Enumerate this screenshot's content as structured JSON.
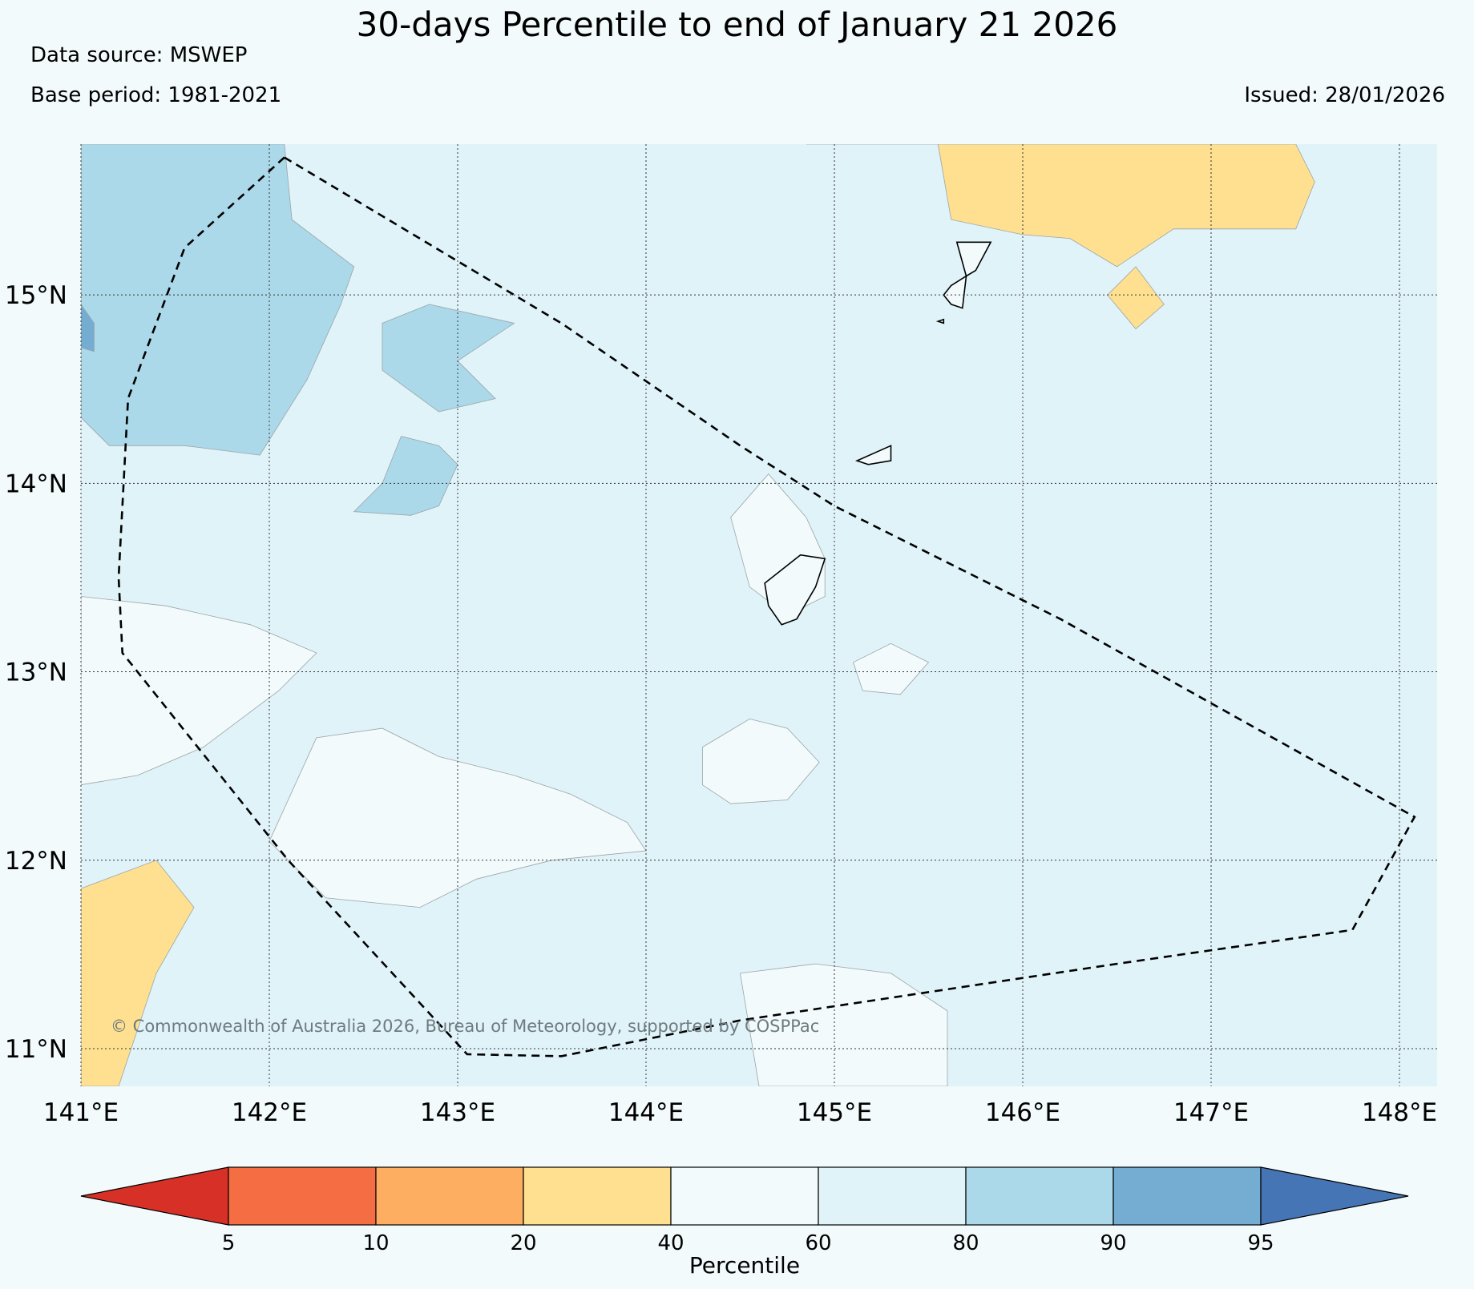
{
  "title": "30-days Percentile to end of January 21 2026",
  "data_source": "Data source: MSWEP",
  "base_period": "Base period: 1981-2021",
  "issued": "Issued: 28/01/2026",
  "copyright": "© Commonwealth of Australia 2026, Bureau of Meteorology, supported by COSPPac",
  "map": {
    "lon_range": [
      141.0,
      148.2
    ],
    "lat_range": [
      10.8,
      15.8
    ],
    "lon_ticks": [
      141,
      142,
      143,
      144,
      145,
      146,
      147,
      148
    ],
    "lon_labels": [
      "141°E",
      "142°E",
      "143°E",
      "144°E",
      "145°E",
      "146°E",
      "147°E",
      "148°E"
    ],
    "lat_ticks": [
      11,
      12,
      13,
      14,
      15
    ],
    "lat_labels": [
      "11°N",
      "12°N",
      "13°N",
      "14°N",
      "15°N"
    ],
    "background_class": "60-80"
  },
  "colorbar": {
    "title": "Percentile",
    "tick_labels": [
      "5",
      "10",
      "20",
      "40",
      "60",
      "80",
      "90",
      "95"
    ],
    "colors": [
      "#d73027",
      "#f46d43",
      "#fdae61",
      "#fee090",
      "#f2fafc",
      "#e0f3f8",
      "#abd9e9",
      "#74add1",
      "#4575b4"
    ]
  },
  "region_outline": [
    [
      142.08,
      15.73
    ],
    [
      141.55,
      15.25
    ],
    [
      141.25,
      14.45
    ],
    [
      141.2,
      13.5
    ],
    [
      141.22,
      13.1
    ],
    [
      142.1,
      12.0
    ],
    [
      143.05,
      10.97
    ],
    [
      143.55,
      10.96
    ],
    [
      144.5,
      11.15
    ],
    [
      146.5,
      11.45
    ],
    [
      147.75,
      11.63
    ],
    [
      148.08,
      12.23
    ],
    [
      146.2,
      13.28
    ],
    [
      145.0,
      13.88
    ],
    [
      144.5,
      14.2
    ],
    [
      143.55,
      14.85
    ],
    [
      142.08,
      15.73
    ]
  ],
  "islands": [
    [
      [
        144.63,
        13.47
      ],
      [
        144.82,
        13.62
      ],
      [
        144.95,
        13.6
      ],
      [
        144.9,
        13.45
      ],
      [
        144.8,
        13.28
      ],
      [
        144.72,
        13.25
      ],
      [
        144.65,
        13.35
      ]
    ],
    [
      [
        145.65,
        15.28
      ],
      [
        145.83,
        15.28
      ],
      [
        145.75,
        15.13
      ],
      [
        145.7,
        15.1
      ]
    ],
    [
      [
        145.62,
        15.05
      ],
      [
        145.7,
        15.1
      ],
      [
        145.68,
        14.93
      ],
      [
        145.62,
        14.95
      ],
      [
        145.58,
        15.0
      ]
    ],
    [
      [
        145.12,
        14.12
      ],
      [
        145.3,
        14.2
      ],
      [
        145.3,
        14.12
      ],
      [
        145.18,
        14.1
      ]
    ],
    [
      [
        145.55,
        14.86
      ],
      [
        145.58,
        14.87
      ],
      [
        145.58,
        14.85
      ]
    ]
  ],
  "contours": [
    {
      "class": "80-90",
      "points": [
        [
          141,
          15.8
        ],
        [
          142.08,
          15.8
        ],
        [
          142.12,
          15.4
        ],
        [
          142.45,
          15.15
        ],
        [
          142.38,
          14.95
        ],
        [
          142.2,
          14.55
        ],
        [
          141.95,
          14.15
        ],
        [
          141.55,
          14.2
        ],
        [
          141.15,
          14.2
        ],
        [
          141,
          14.35
        ]
      ]
    },
    {
      "class": "80-90",
      "points": [
        [
          142.6,
          14.85
        ],
        [
          142.85,
          14.95
        ],
        [
          143.3,
          14.85
        ],
        [
          143.0,
          14.65
        ],
        [
          143.2,
          14.45
        ],
        [
          142.9,
          14.38
        ],
        [
          142.6,
          14.6
        ]
      ]
    },
    {
      "class": "80-90",
      "points": [
        [
          142.45,
          13.85
        ],
        [
          142.6,
          14.0
        ],
        [
          142.7,
          14.25
        ],
        [
          142.9,
          14.2
        ],
        [
          143.0,
          14.1
        ],
        [
          142.9,
          13.88
        ],
        [
          142.75,
          13.83
        ]
      ]
    },
    {
      "class": "90-95",
      "points": [
        [
          141,
          14.95
        ],
        [
          141.07,
          14.85
        ],
        [
          141.07,
          14.7
        ],
        [
          141,
          14.72
        ]
      ]
    },
    {
      "class": "20-40",
      "points": [
        [
          144.85,
          15.8
        ],
        [
          145.55,
          15.8
        ],
        [
          145.62,
          15.4
        ],
        [
          146.0,
          15.32
        ],
        [
          146.25,
          15.3
        ],
        [
          146.5,
          15.15
        ],
        [
          146.8,
          15.35
        ],
        [
          147.45,
          15.35
        ],
        [
          147.55,
          15.6
        ],
        [
          147.45,
          15.8
        ]
      ]
    },
    {
      "class": "20-40",
      "points": [
        [
          146.45,
          15.0
        ],
        [
          146.6,
          15.15
        ],
        [
          146.75,
          14.95
        ],
        [
          146.6,
          14.82
        ]
      ]
    },
    {
      "class": "20-40",
      "points": [
        [
          141,
          11.85
        ],
        [
          141.4,
          12.0
        ],
        [
          141.6,
          11.75
        ],
        [
          141.4,
          11.4
        ],
        [
          141.2,
          10.8
        ],
        [
          141,
          10.8
        ]
      ]
    },
    {
      "class": "40-60",
      "points": [
        [
          141,
          13.4
        ],
        [
          141.45,
          13.35
        ],
        [
          141.9,
          13.25
        ],
        [
          142.25,
          13.1
        ],
        [
          142.05,
          12.9
        ],
        [
          141.65,
          12.6
        ],
        [
          141.3,
          12.45
        ],
        [
          141.0,
          12.4
        ]
      ]
    },
    {
      "class": "40-60",
      "points": [
        [
          142.25,
          12.65
        ],
        [
          142.6,
          12.7
        ],
        [
          142.9,
          12.55
        ],
        [
          143.3,
          12.45
        ],
        [
          143.6,
          12.35
        ],
        [
          143.9,
          12.2
        ],
        [
          144.0,
          12.05
        ],
        [
          143.5,
          12.0
        ],
        [
          143.1,
          11.9
        ],
        [
          142.8,
          11.75
        ],
        [
          142.3,
          11.8
        ],
        [
          142.0,
          12.1
        ]
      ]
    },
    {
      "class": "40-60",
      "points": [
        [
          144.3,
          12.6
        ],
        [
          144.55,
          12.75
        ],
        [
          144.75,
          12.7
        ],
        [
          144.92,
          12.52
        ],
        [
          144.75,
          12.32
        ],
        [
          144.45,
          12.3
        ],
        [
          144.3,
          12.4
        ]
      ]
    },
    {
      "class": "40-60",
      "points": [
        [
          144.45,
          13.82
        ],
        [
          144.65,
          14.05
        ],
        [
          144.85,
          13.82
        ],
        [
          144.95,
          13.6
        ],
        [
          144.95,
          13.4
        ],
        [
          144.75,
          13.3
        ],
        [
          144.55,
          13.45
        ]
      ]
    },
    {
      "class": "40-60",
      "points": [
        [
          145.1,
          13.05
        ],
        [
          145.3,
          13.15
        ],
        [
          145.5,
          13.05
        ],
        [
          145.35,
          12.88
        ],
        [
          145.15,
          12.9
        ]
      ]
    },
    {
      "class": "40-60",
      "points": [
        [
          144.5,
          11.4
        ],
        [
          144.9,
          11.45
        ],
        [
          145.3,
          11.4
        ],
        [
          145.6,
          11.2
        ],
        [
          145.6,
          10.8
        ],
        [
          144.6,
          10.8
        ]
      ]
    }
  ]
}
